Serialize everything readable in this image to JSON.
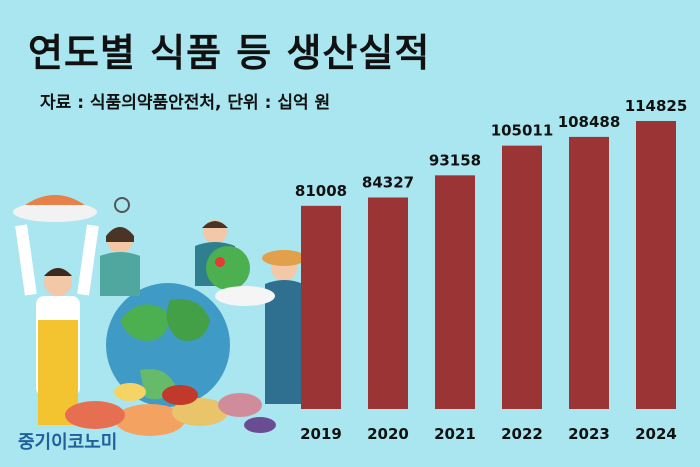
{
  "title": "연도별 식품 등 생산실적",
  "source_note": "자료 : 식품의약품안전처, 단위 : 십억 원",
  "watermark": "중기이코노미",
  "colors": {
    "background": "#a9e6ef",
    "bar": "#9b3434",
    "text": "#111111",
    "watermark": "#1f5f9a"
  },
  "chart_data": {
    "type": "bar",
    "title": "연도별 식품 등 생산실적",
    "categories": [
      "2019",
      "2020",
      "2021",
      "2022",
      "2023",
      "2024"
    ],
    "values": [
      81008,
      84327,
      93158,
      105011,
      108488,
      114825
    ],
    "unit": "십억 원",
    "data_labels": true,
    "grid": false
  }
}
